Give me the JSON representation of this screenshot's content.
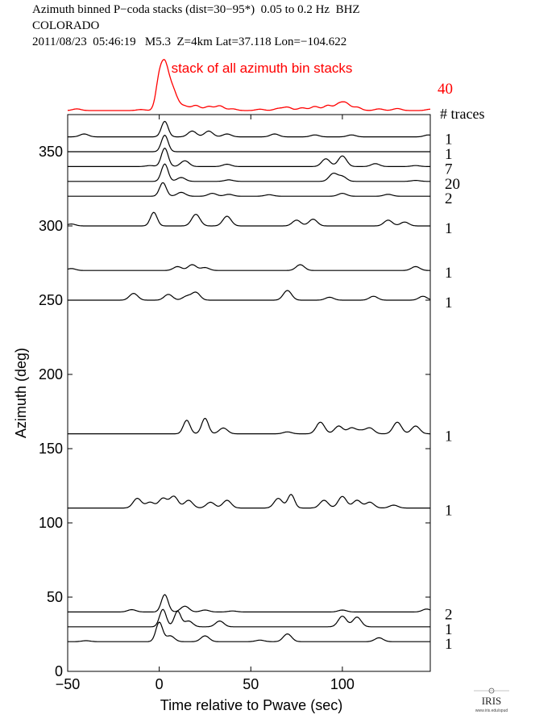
{
  "header": {
    "line1": "Azimuth binned P−coda stacks (dist=30−95*)  0.05 to 0.2 Hz  BHZ",
    "line2": "COLORADO",
    "line3": "2011/08/23  05:46:19   M5.3  Z=4km Lat=37.118 Lon=−104.622"
  },
  "logo": {
    "text": "IRIS",
    "subtext": "www.iris.edu/spud"
  },
  "chart_data": {
    "type": "line",
    "title": "Azimuth binned P−coda stacks (dist=30−95*)  0.05 to 0.2 Hz  BHZ",
    "xlabel": "Time relative to Pwave (sec)",
    "ylabel": "Azimuth (deg)",
    "xlim": [
      -50,
      148
    ],
    "ylim": [
      0,
      375
    ],
    "x_ticks": [
      -50,
      0,
      50,
      100
    ],
    "y_ticks": [
      0,
      50,
      100,
      150,
      200,
      250,
      300,
      350
    ],
    "grid": false,
    "colors": {
      "axis": "#000000",
      "trace": "#000000",
      "stack": "#ff0000"
    },
    "summary_stack": {
      "label": "stack of all azimuth bin stacks",
      "count": "40",
      "count_header": "# traces",
      "color": "#ff0000",
      "peaks": [
        [
          -50,
          0
        ],
        [
          -45,
          0.05
        ],
        [
          -10,
          0.03
        ],
        [
          0,
          0.9
        ],
        [
          3,
          1.0
        ],
        [
          6,
          0.6
        ],
        [
          9,
          0.25
        ],
        [
          14,
          0.12
        ],
        [
          20,
          0.15
        ],
        [
          27,
          0.12
        ],
        [
          33,
          0.14
        ],
        [
          40,
          0.05
        ],
        [
          55,
          0.04
        ],
        [
          65,
          0.06
        ],
        [
          70,
          0.1
        ],
        [
          78,
          0.08
        ],
        [
          85,
          0.12
        ],
        [
          92,
          0.15
        ],
        [
          98,
          0.18
        ],
        [
          102,
          0.2
        ],
        [
          108,
          0.1
        ],
        [
          120,
          0.05
        ],
        [
          130,
          0.06
        ],
        [
          148,
          0.04
        ]
      ]
    },
    "traces": [
      {
        "azimuth": 360,
        "count": "1",
        "peaks": [
          [
            -41,
            0.15
          ],
          [
            3,
            0.8
          ],
          [
            18,
            0.3
          ],
          [
            27,
            0.3
          ],
          [
            37,
            0.15
          ],
          [
            63,
            0.15
          ],
          [
            85,
            0.1
          ],
          [
            105,
            0.1
          ],
          [
            147,
            0.1
          ]
        ]
      },
      {
        "azimuth": 350,
        "count": "1",
        "peaks": [
          [
            3,
            0.85
          ]
        ]
      },
      {
        "azimuth": 340,
        "count": "7",
        "peaks": [
          [
            -5,
            0.05
          ],
          [
            3,
            0.95
          ],
          [
            14,
            0.3
          ],
          [
            37,
            0.12
          ],
          [
            91,
            0.4
          ],
          [
            100,
            0.55
          ],
          [
            118,
            0.15
          ],
          [
            140,
            0.05
          ]
        ]
      },
      {
        "azimuth": 330,
        "count": "20",
        "peaks": [
          [
            3,
            0.9
          ],
          [
            12,
            0.2
          ],
          [
            38,
            0.08
          ],
          [
            95,
            0.4
          ],
          [
            100,
            0.25
          ],
          [
            140,
            0.05
          ]
        ]
      },
      {
        "azimuth": 320,
        "count": "2",
        "peaks": [
          [
            2,
            0.7
          ],
          [
            12,
            0.2
          ],
          [
            29,
            0.15
          ],
          [
            38,
            0.1
          ],
          [
            60,
            0.08
          ],
          [
            100,
            0.15
          ],
          [
            125,
            0.1
          ]
        ]
      },
      {
        "azimuth": 300,
        "count": "1",
        "peaks": [
          [
            -48,
            0.1
          ],
          [
            -3,
            0.7
          ],
          [
            20,
            0.6
          ],
          [
            37,
            0.5
          ],
          [
            75,
            0.3
          ],
          [
            84,
            0.35
          ],
          [
            125,
            0.3
          ],
          [
            134,
            0.2
          ]
        ]
      },
      {
        "azimuth": 270,
        "count": "1",
        "peaks": [
          [
            -48,
            0.1
          ],
          [
            10,
            0.2
          ],
          [
            18,
            0.3
          ],
          [
            25,
            0.15
          ],
          [
            77,
            0.3
          ],
          [
            140,
            0.2
          ]
        ]
      },
      {
        "azimuth": 250,
        "count": "1",
        "peaks": [
          [
            -14,
            0.35
          ],
          [
            5,
            0.3
          ],
          [
            15,
            0.2
          ],
          [
            20,
            0.4
          ],
          [
            70,
            0.5
          ],
          [
            93,
            0.15
          ],
          [
            117,
            0.2
          ],
          [
            144,
            0.2
          ]
        ]
      },
      {
        "azimuth": 160,
        "count": "1",
        "peaks": [
          [
            15,
            0.7
          ],
          [
            25,
            0.8
          ],
          [
            35,
            0.3
          ],
          [
            70,
            0.1
          ],
          [
            88,
            0.6
          ],
          [
            98,
            0.4
          ],
          [
            105,
            0.3
          ],
          [
            110,
            0.15
          ],
          [
            115,
            0.3
          ],
          [
            130,
            0.6
          ],
          [
            140,
            0.4
          ]
        ]
      },
      {
        "azimuth": 110,
        "count": "1",
        "peaks": [
          [
            -12,
            0.5
          ],
          [
            -5,
            0.3
          ],
          [
            2,
            0.5
          ],
          [
            8,
            0.6
          ],
          [
            16,
            0.4
          ],
          [
            28,
            0.3
          ],
          [
            37,
            0.4
          ],
          [
            65,
            0.5
          ],
          [
            72,
            0.7
          ],
          [
            90,
            0.4
          ],
          [
            100,
            0.6
          ],
          [
            108,
            0.4
          ],
          [
            115,
            0.3
          ],
          [
            128,
            0.15
          ]
        ]
      },
      {
        "azimuth": 40,
        "count": "2",
        "peaks": [
          [
            -15,
            0.12
          ],
          [
            3,
            0.9
          ],
          [
            14,
            0.3
          ],
          [
            25,
            0.1
          ],
          [
            40,
            0.05
          ],
          [
            100,
            0.1
          ],
          [
            146,
            0.15
          ]
        ]
      },
      {
        "azimuth": 30,
        "count": "1",
        "peaks": [
          [
            2,
            0.9
          ],
          [
            10,
            0.8
          ],
          [
            16,
            0.3
          ],
          [
            33,
            0.3
          ],
          [
            100,
            0.55
          ],
          [
            108,
            0.5
          ]
        ]
      },
      {
        "azimuth": 20,
        "count": "1",
        "peaks": [
          [
            -40,
            0.05
          ],
          [
            0,
            1.0
          ],
          [
            6,
            0.3
          ],
          [
            25,
            0.3
          ],
          [
            55,
            0.08
          ],
          [
            70,
            0.4
          ],
          [
            120,
            0.2
          ]
        ]
      }
    ]
  }
}
